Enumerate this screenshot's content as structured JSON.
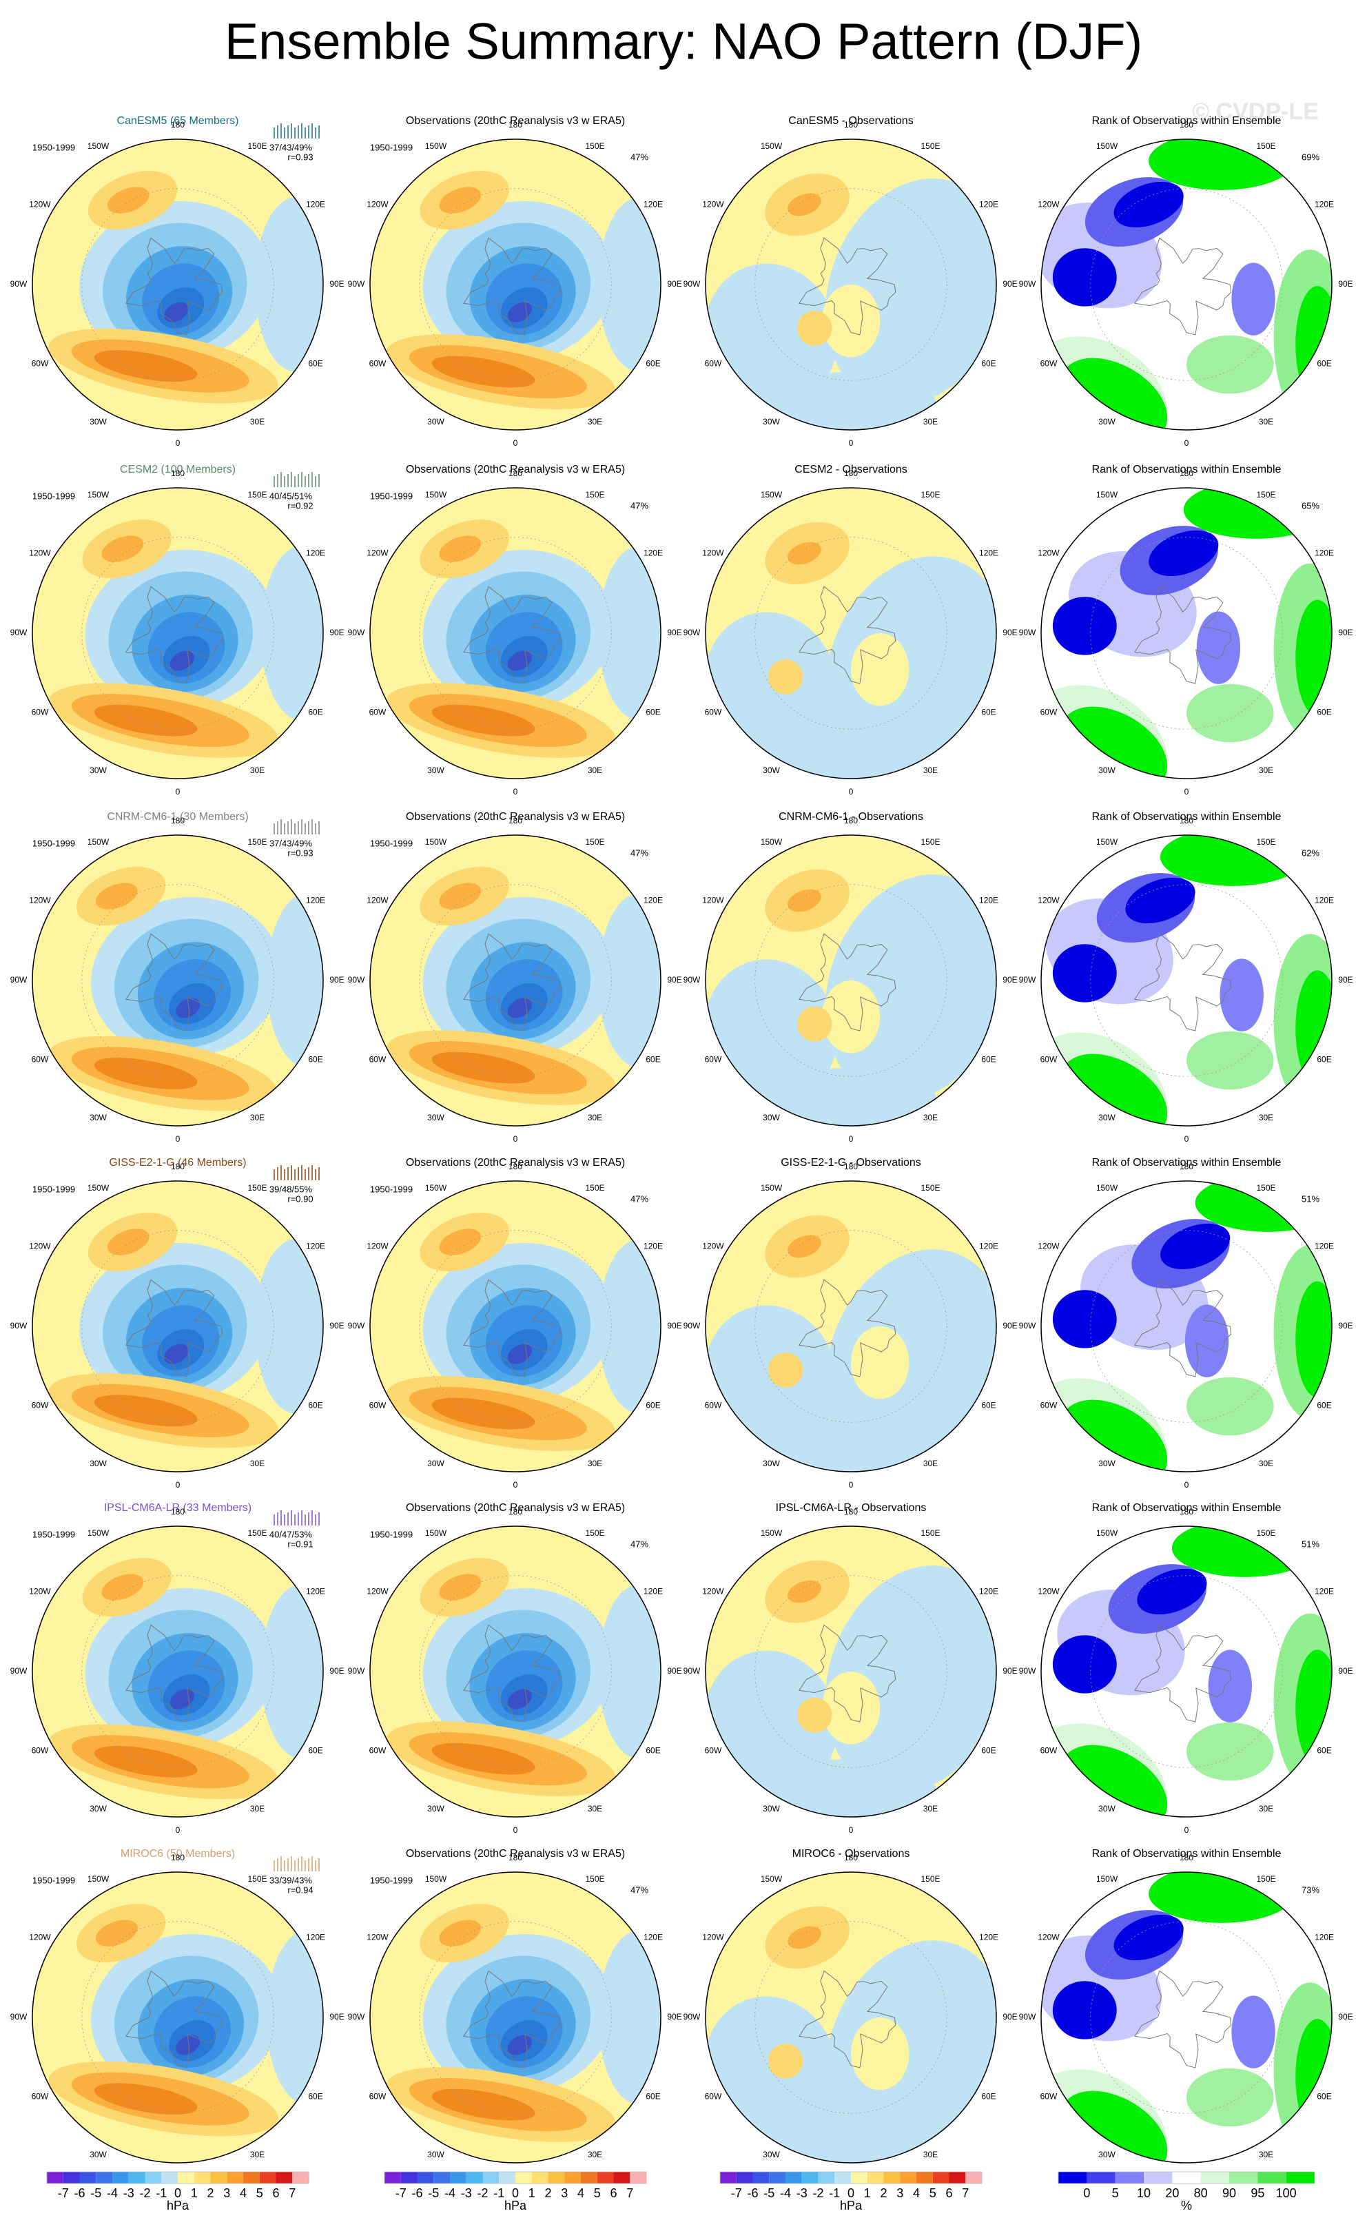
{
  "header": {
    "title": "Ensemble Summary: NAO Pattern (DJF)",
    "watermark": "© CVDP-LE"
  },
  "rows": [
    {
      "model_title": "CanESM5 (65 Members)",
      "period": "1950-1999",
      "stats": "37/43/49%",
      "r": "r=0.93",
      "obs_title": "Observations (20thC Reanalysis v3 w ERA5)",
      "obs_period": "1950-1999",
      "obs_pct": "47%",
      "diff_title": "CanESM5 - Observations",
      "rank_title": "Rank of Observations within Ensemble",
      "rank_pct": "69%"
    },
    {
      "model_title": "CESM2 (100 Members)",
      "period": "1950-1999",
      "stats": "40/45/51%",
      "r": "r=0.92",
      "obs_title": "Observations (20thC Reanalysis v3 w ERA5)",
      "obs_period": "1950-1999",
      "obs_pct": "47%",
      "diff_title": "CESM2 - Observations",
      "rank_title": "Rank of Observations within Ensemble",
      "rank_pct": "65%"
    },
    {
      "model_title": "CNRM-CM6-1 (30 Members)",
      "period": "1950-1999",
      "stats": "37/43/49%",
      "r": "r=0.93",
      "obs_title": "Observations (20thC Reanalysis v3 w ERA5)",
      "obs_period": "1950-1999",
      "obs_pct": "47%",
      "diff_title": "CNRM-CM6-1 - Observations",
      "rank_title": "Rank of Observations within Ensemble",
      "rank_pct": "62%"
    },
    {
      "model_title": "GISS-E2-1-G (46 Members)",
      "period": "1950-1999",
      "stats": "39/48/55%",
      "r": "r=0.90",
      "obs_title": "Observations (20thC Reanalysis v3 w ERA5)",
      "obs_period": "1950-1999",
      "obs_pct": "47%",
      "diff_title": "GISS-E2-1-G - Observations",
      "rank_title": "Rank of Observations within Ensemble",
      "rank_pct": "51%"
    },
    {
      "model_title": "IPSL-CM6A-LR (33 Members)",
      "period": "1950-1999",
      "stats": "40/47/53%",
      "r": "r=0.91",
      "obs_title": "Observations (20thC Reanalysis v3 w ERA5)",
      "obs_period": "1950-1999",
      "obs_pct": "47%",
      "diff_title": "IPSL-CM6A-LR - Observations",
      "rank_title": "Rank of Observations within Ensemble",
      "rank_pct": "51%"
    },
    {
      "model_title": "MIROC6 (50 Members)",
      "period": "1950-1999",
      "stats": "33/39/43%",
      "r": "r=0.94",
      "obs_title": "Observations (20thC Reanalysis v3 w ERA5)",
      "obs_period": "1950-1999",
      "obs_pct": "47%",
      "diff_title": "MIROC6 - Observations",
      "rank_title": "Rank of Observations within Ensemble",
      "rank_pct": "73%"
    }
  ],
  "map_labels": [
    "180",
    "150E",
    "120E",
    "90E",
    "60E",
    "30E",
    "0",
    "30W",
    "60W",
    "90W",
    "120W",
    "150W"
  ],
  "colorbars": [
    {
      "ticks": [
        "-7",
        "-6",
        "-5",
        "-4",
        "-3",
        "-2",
        "-1",
        "0",
        "1",
        "2",
        "3",
        "4",
        "5",
        "6",
        "7"
      ],
      "unit": "hPa"
    },
    {
      "ticks": [
        "-7",
        "-6",
        "-5",
        "-4",
        "-3",
        "-2",
        "-1",
        "0",
        "1",
        "2",
        "3",
        "4",
        "5",
        "6",
        "7"
      ],
      "unit": "hPa"
    },
    {
      "ticks": [
        "-7",
        "-6",
        "-5",
        "-4",
        "-3",
        "-2",
        "-1",
        "0",
        "1",
        "2",
        "3",
        "4",
        "5",
        "6",
        "7"
      ],
      "unit": "hPa"
    },
    {
      "ticks": [
        "0",
        "5",
        "10",
        "20",
        "80",
        "90",
        "95",
        "100"
      ],
      "unit": "%"
    }
  ]
}
